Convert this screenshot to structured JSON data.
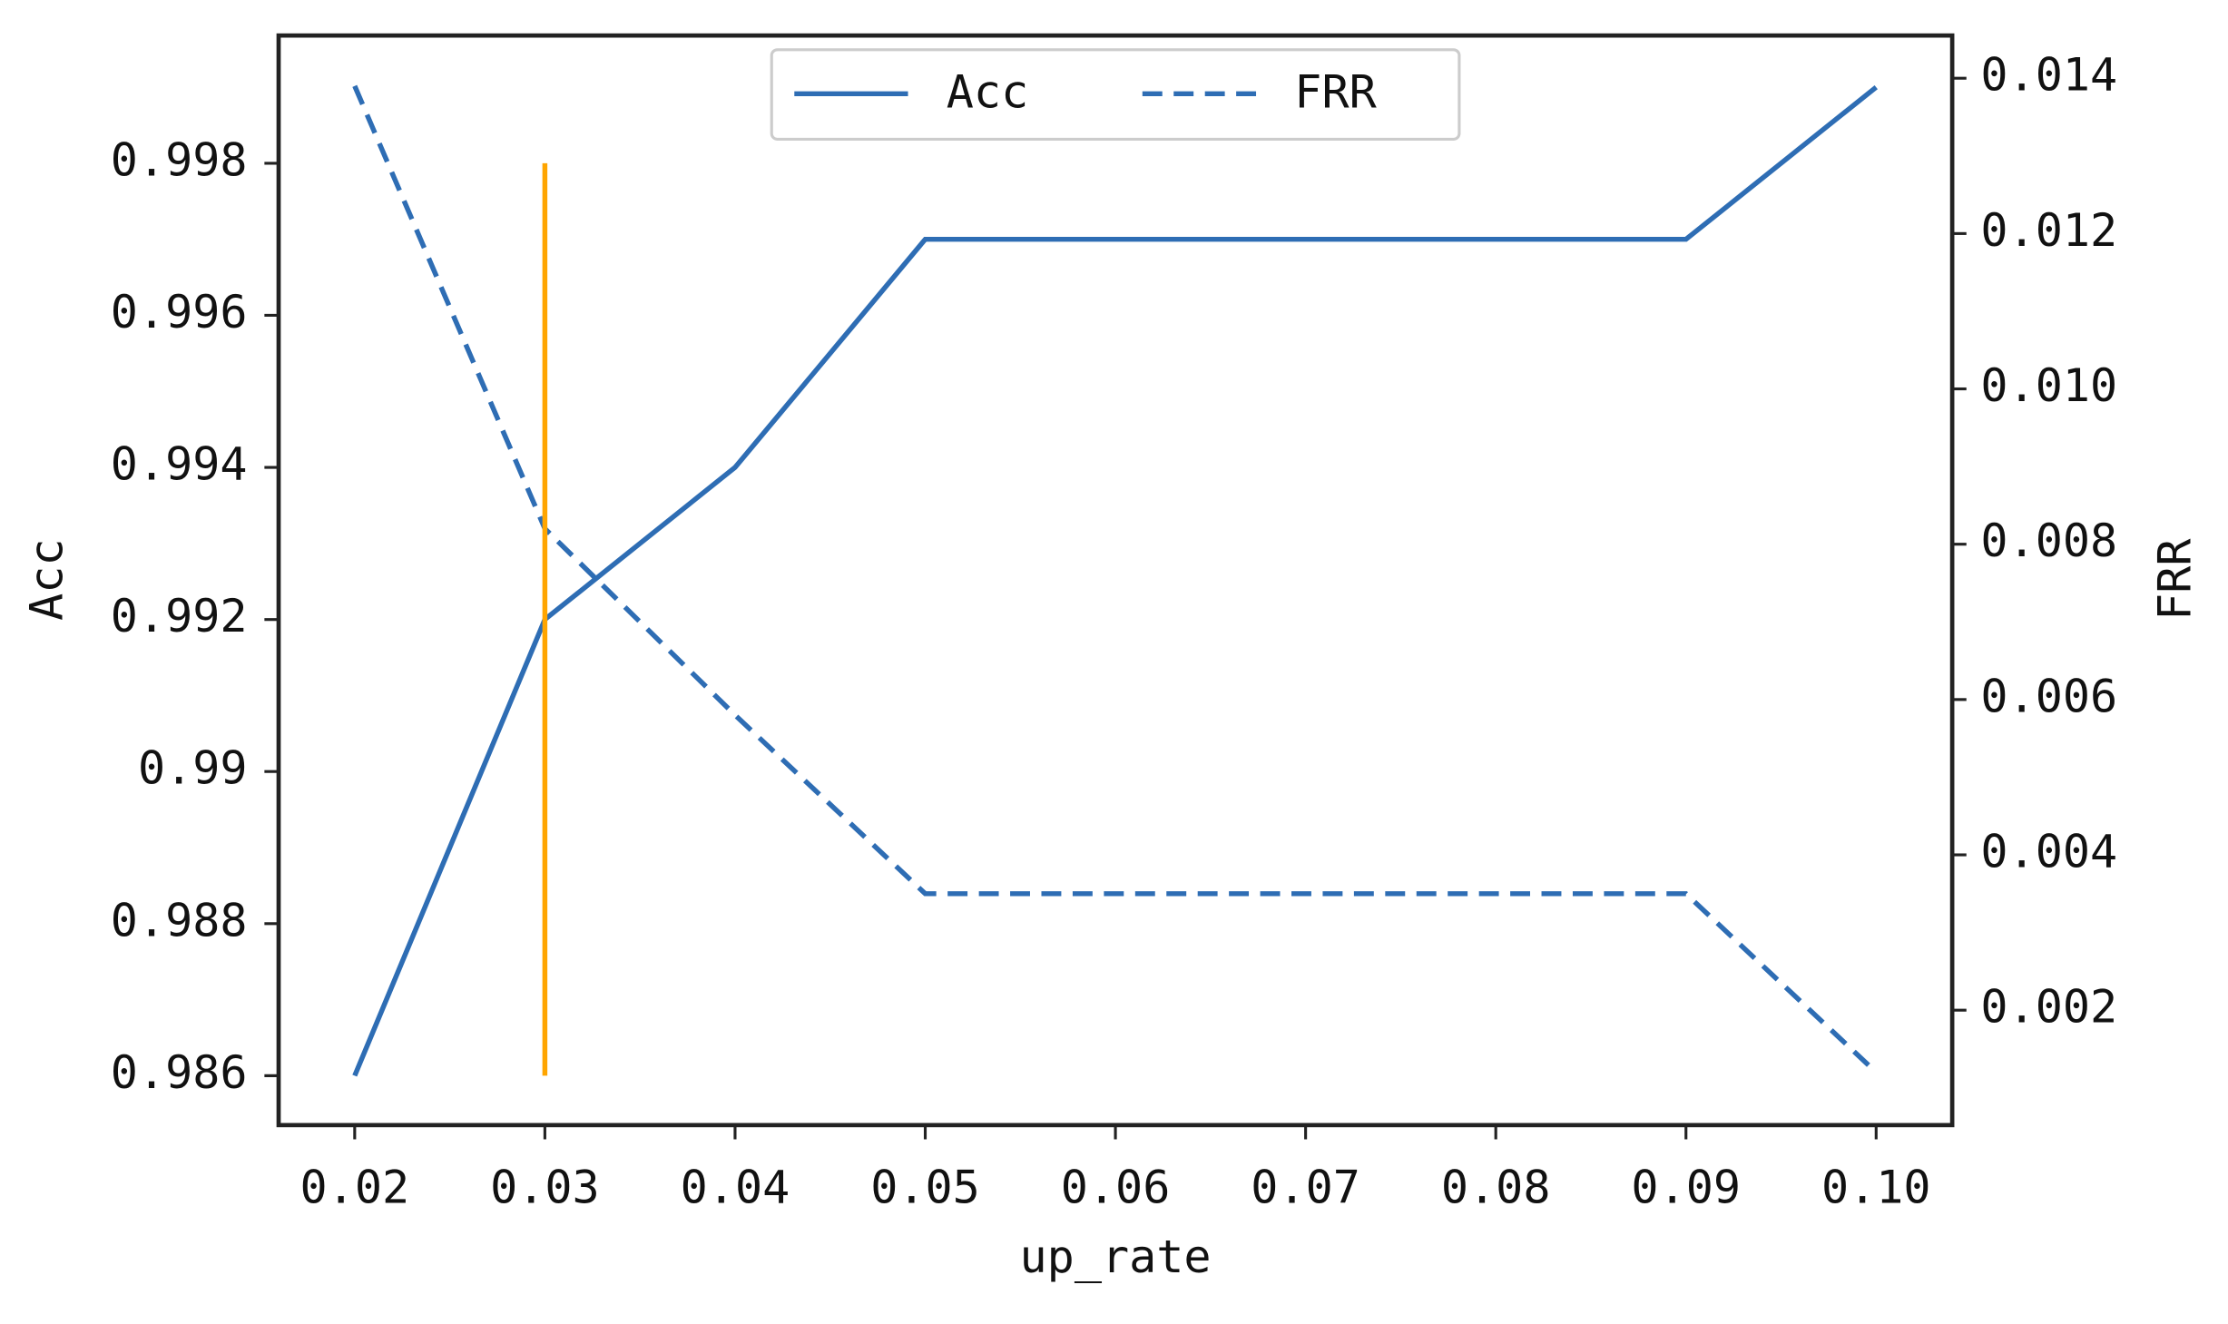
{
  "chart_data": {
    "type": "line",
    "x": [
      0.02,
      0.03,
      0.04,
      0.05,
      0.06,
      0.07,
      0.08,
      0.09,
      0.1
    ],
    "xlabel": "up_rate",
    "ylabel": "Acc",
    "y2label": "FRR",
    "series": [
      {
        "name": "Acc",
        "color": "#2e6db4",
        "linestyle": "solid",
        "axis": "y",
        "values": [
          0.986,
          0.992,
          0.994,
          0.997,
          0.997,
          0.997,
          0.997,
          0.997,
          0.999
        ]
      },
      {
        "name": "FRR",
        "color": "#2e6db4",
        "linestyle": "dashed",
        "axis": "y2",
        "values": [
          0.0139,
          0.0082,
          0.0058,
          0.0035,
          0.0035,
          0.0035,
          0.0035,
          0.0035,
          0.0012
        ]
      }
    ],
    "vlines": [
      {
        "x": 0.03,
        "ymin": 0.986,
        "ymax": 0.998,
        "color": "#ffa500"
      }
    ],
    "xlim": [
      0.016,
      0.104
    ],
    "xticks": [
      {
        "value": 0.02,
        "label": "0.02"
      },
      {
        "value": 0.03,
        "label": "0.03"
      },
      {
        "value": 0.04,
        "label": "0.04"
      },
      {
        "value": 0.05,
        "label": "0.05"
      },
      {
        "value": 0.06,
        "label": "0.06"
      },
      {
        "value": 0.07,
        "label": "0.07"
      },
      {
        "value": 0.08,
        "label": "0.08"
      },
      {
        "value": 0.09,
        "label": "0.09"
      },
      {
        "value": 0.1,
        "label": "0.10"
      }
    ],
    "ylim": [
      0.98535,
      0.99968
    ],
    "yticks": [
      0.986,
      0.988,
      0.99,
      0.992,
      0.994,
      0.996,
      0.998
    ],
    "y2lim": [
      0.00052,
      0.01455
    ],
    "y2ticks": [
      0.002,
      0.004,
      0.006,
      0.008,
      {
        "value": 0.01,
        "label": "0.010"
      },
      0.012,
      0.014
    ],
    "legend": "upper center"
  }
}
